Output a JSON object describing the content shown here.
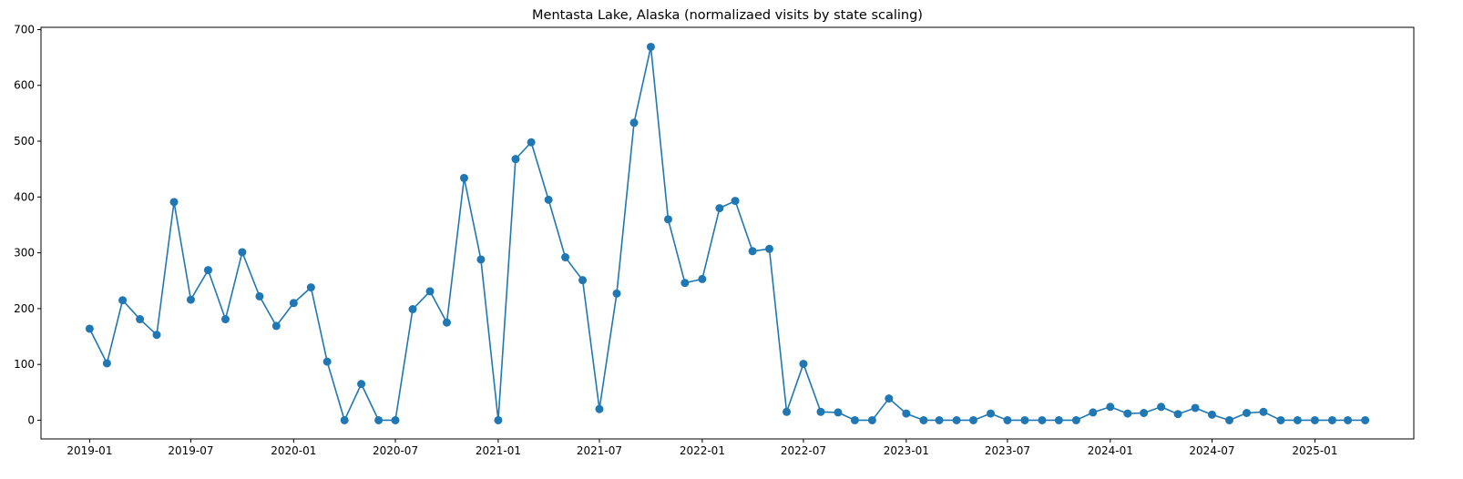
{
  "chart_data": {
    "type": "line",
    "title": "Mentasta Lake, Alaska (normalizaed visits by state scaling)",
    "xlabel": "",
    "ylabel": "",
    "grid": false,
    "legend": "none",
    "color": "#1f77b4",
    "xlim": [
      "2018-10-06",
      "2025-06-27"
    ],
    "ylim": [
      -33.5,
      704
    ],
    "x_ticks": [
      "2019-01",
      "2019-07",
      "2020-01",
      "2020-07",
      "2021-01",
      "2021-07",
      "2022-01",
      "2022-07",
      "2023-01",
      "2023-07",
      "2024-01",
      "2024-07",
      "2025-01"
    ],
    "y_ticks": [
      0,
      100,
      200,
      300,
      400,
      500,
      600,
      700
    ],
    "series": [
      {
        "x": [
          "2019-01",
          "2019-02",
          "2019-03",
          "2019-04",
          "2019-05",
          "2019-06",
          "2019-07",
          "2019-08",
          "2019-09",
          "2019-10",
          "2019-11",
          "2019-12",
          "2020-01",
          "2020-02",
          "2020-03",
          "2020-04",
          "2020-05",
          "2020-06",
          "2020-07",
          "2020-08",
          "2020-09",
          "2020-10",
          "2020-11",
          "2020-12",
          "2021-01",
          "2021-02",
          "2021-03",
          "2021-04",
          "2021-05",
          "2021-06",
          "2021-07",
          "2021-08",
          "2021-09",
          "2021-10",
          "2021-11",
          "2021-12",
          "2022-01",
          "2022-02",
          "2022-03",
          "2022-04",
          "2022-05",
          "2022-06",
          "2022-07",
          "2022-08",
          "2022-09",
          "2022-10",
          "2022-11",
          "2022-12",
          "2023-01",
          "2023-02",
          "2023-03",
          "2023-04",
          "2023-05",
          "2023-06",
          "2023-07",
          "2023-08",
          "2023-09",
          "2023-10",
          "2023-11",
          "2023-12",
          "2024-01",
          "2024-02",
          "2024-03",
          "2024-04",
          "2024-05",
          "2024-06",
          "2024-07",
          "2024-08",
          "2024-09",
          "2024-10",
          "2024-11",
          "2024-12",
          "2025-01",
          "2025-02",
          "2025-03",
          "2025-04"
        ],
        "values": [
          164,
          102,
          215,
          181,
          153,
          391,
          216,
          269,
          181,
          301,
          222,
          169,
          210,
          238,
          105,
          0,
          65,
          0,
          0,
          199,
          231,
          175,
          434,
          288,
          0,
          468,
          498,
          395,
          292,
          251,
          20,
          227,
          533,
          669,
          360,
          246,
          253,
          380,
          393,
          303,
          307,
          15,
          101,
          15,
          14,
          0,
          0,
          39,
          12,
          0,
          0,
          0,
          0,
          12,
          0,
          0,
          0,
          0,
          0,
          14,
          24,
          12,
          13,
          24,
          11,
          22,
          10,
          0,
          13,
          15,
          0,
          0,
          0,
          0,
          0,
          0
        ]
      }
    ]
  }
}
